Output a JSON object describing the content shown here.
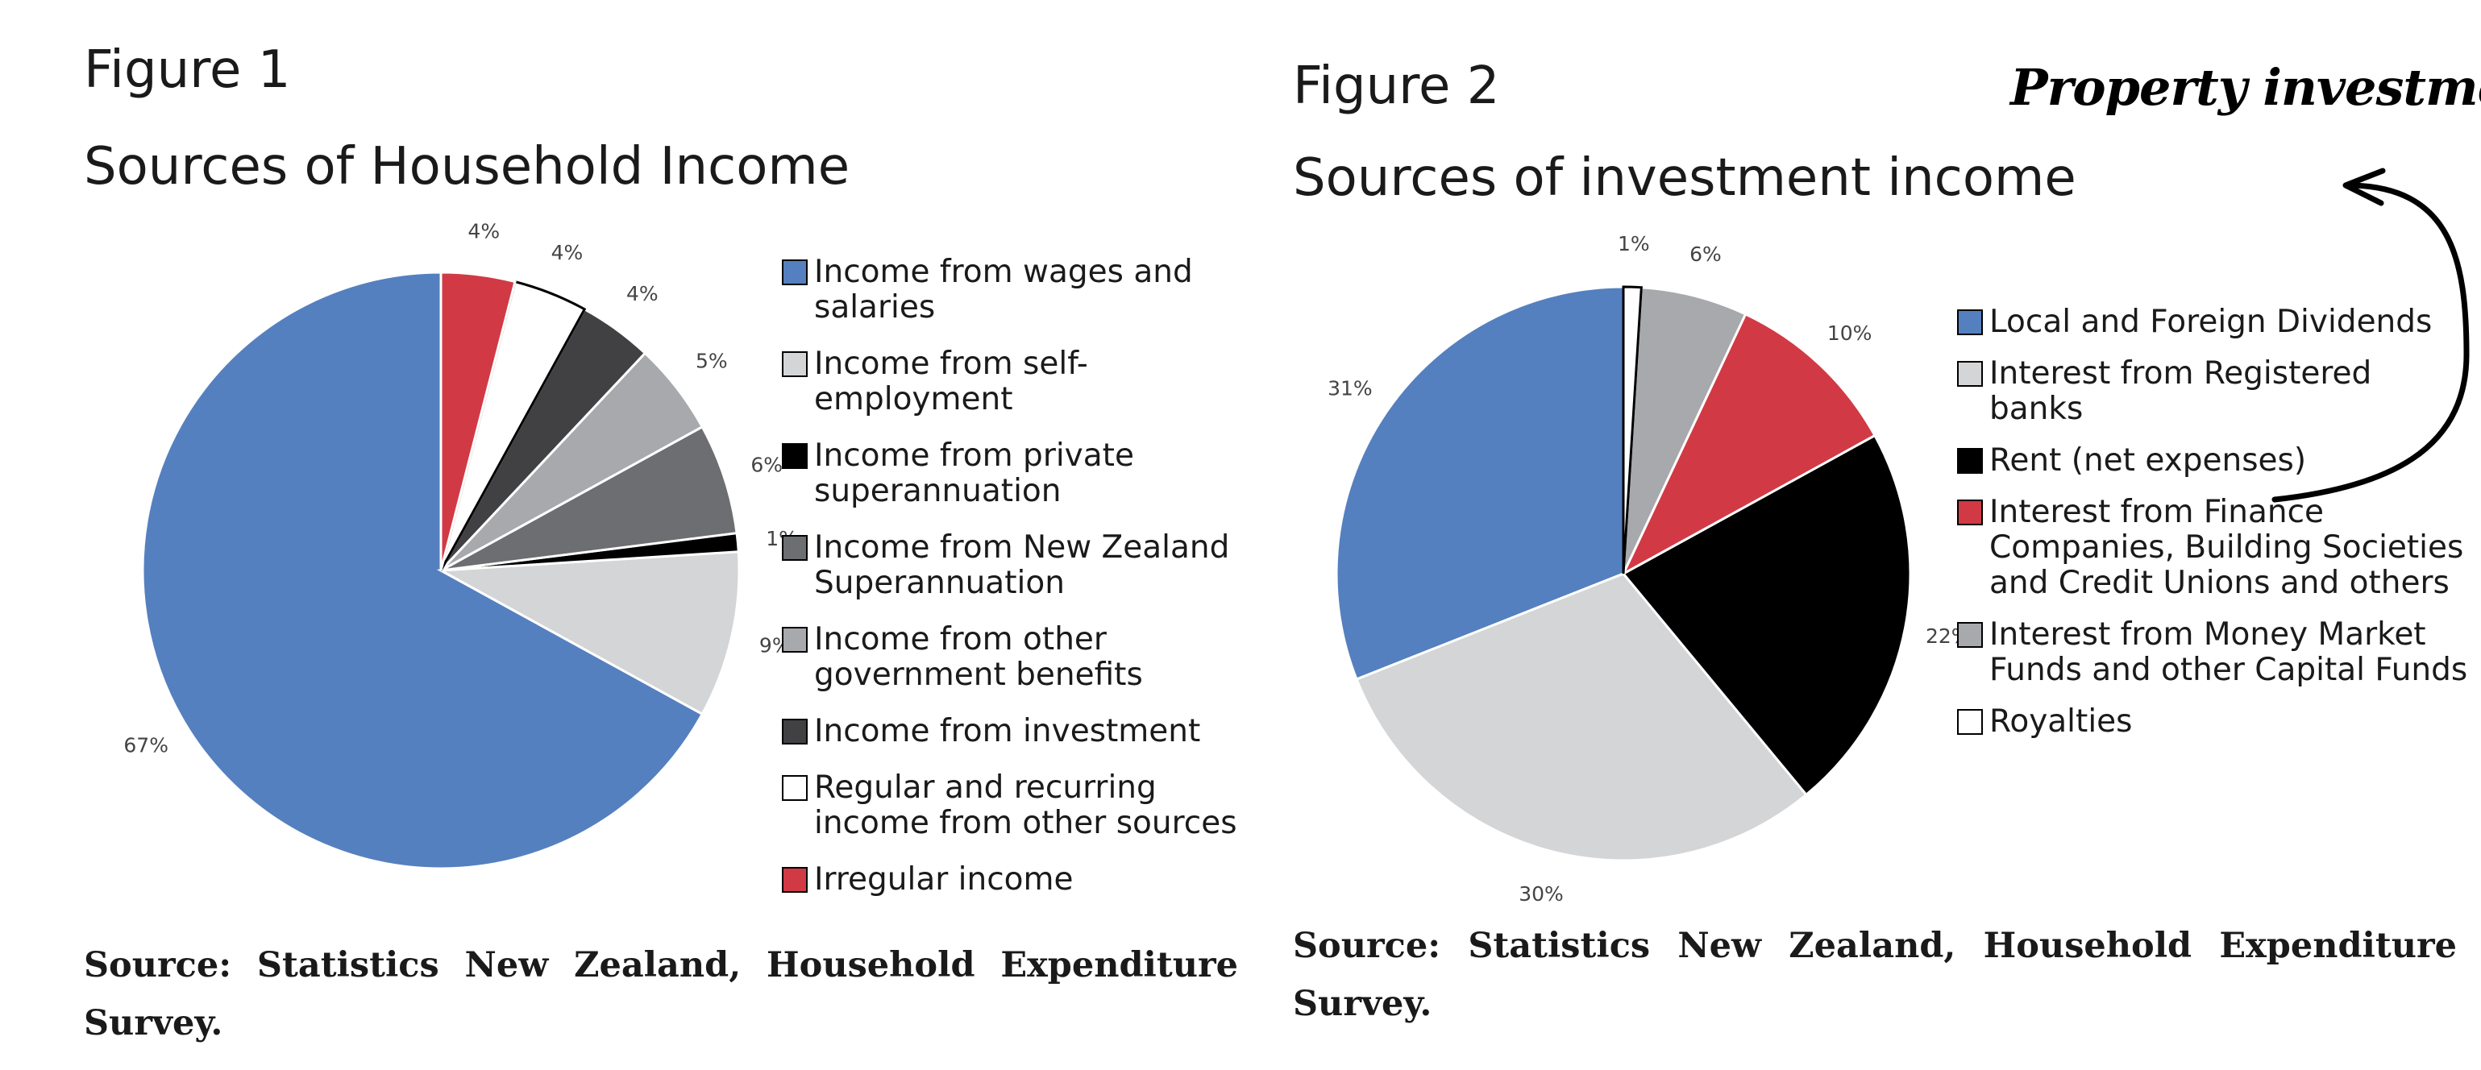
{
  "figures": [
    {
      "label": "Figure 1",
      "title": "Sources of Household Income",
      "source": "Source: Statistics New Zealand, Household Expenditure Survey."
    },
    {
      "label": "Figure 2",
      "title": "Sources of investment income",
      "source": "Source: Statistics New Zealand, Household Expenditure Survey."
    }
  ],
  "annotation": {
    "text": "Property investment",
    "points_to": "Rent (net expenses)"
  },
  "chart_data": [
    {
      "type": "pie",
      "title": "Sources of Household Income",
      "legend_position": "right",
      "slices": [
        {
          "name": "Income from wages and salaries",
          "value": 67,
          "label": "67%",
          "color": "#5580bf"
        },
        {
          "name": "Income from self-employment",
          "value": 9,
          "label": "9%",
          "color": "#d4d5d7"
        },
        {
          "name": "Income from private superannuation",
          "value": 1,
          "label": "1%",
          "color": "#000000"
        },
        {
          "name": "Income from New Zealand Superannuation",
          "value": 6,
          "label": "6%",
          "color": "#6d6e71"
        },
        {
          "name": "Income from other government benefits",
          "value": 5,
          "label": "5%",
          "color": "#a7a9ac"
        },
        {
          "name": "Income from investment",
          "value": 4,
          "label": "4%",
          "color": "#414143"
        },
        {
          "name": "Regular and recurring income from other sources",
          "value": 4,
          "label": "4%",
          "color": "#ffffff"
        },
        {
          "name": "Irregular income",
          "value": 4,
          "label": "4%",
          "color": "#d13a45"
        }
      ]
    },
    {
      "type": "pie",
      "title": "Sources of investment income",
      "legend_position": "right",
      "slices": [
        {
          "name": "Local and Foreign Dividends",
          "value": 31,
          "label": "31%",
          "color": "#5580bf"
        },
        {
          "name": "Interest from Registered banks",
          "value": 30,
          "label": "30%",
          "color": "#d4d5d7"
        },
        {
          "name": "Rent (net expenses)",
          "value": 22,
          "label": "22%",
          "color": "#000000"
        },
        {
          "name": "Interest from Finance Companies, Building Societies and Credit Unions and others",
          "value": 10,
          "label": "10%",
          "color": "#d13a45"
        },
        {
          "name": "Interest from Money Market Funds and other Capital Funds",
          "value": 6,
          "label": "6%",
          "color": "#a7a9ac"
        },
        {
          "name": "Royalties",
          "value": 1,
          "label": "1%",
          "color": "#ffffff"
        }
      ]
    }
  ]
}
